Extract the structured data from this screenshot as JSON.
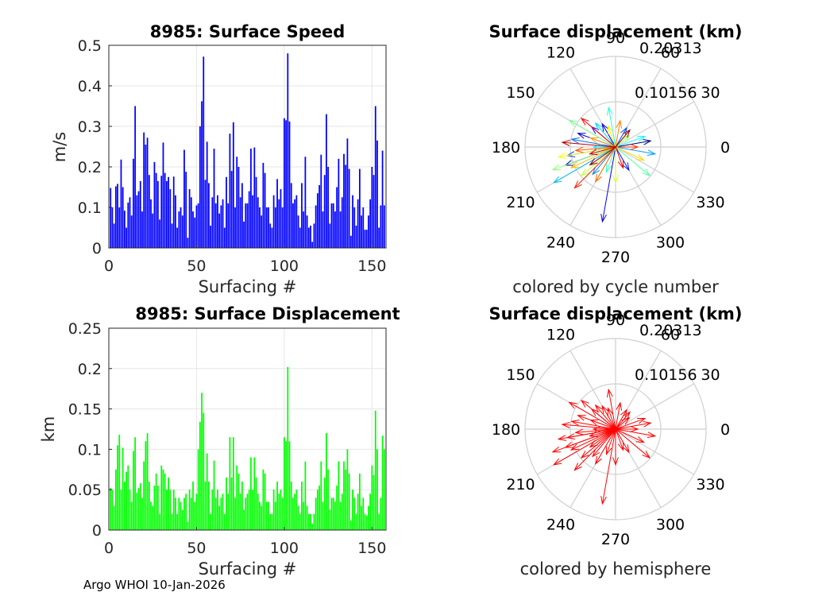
{
  "chart_data": [
    {
      "type": "bar",
      "title": "8985: Surface Speed",
      "xlabel": "Surfacing #",
      "ylabel": "m/s",
      "xlim": [
        0,
        158
      ],
      "ylim": [
        0,
        0.5
      ],
      "xticks": [
        "0",
        "50",
        "100",
        "150"
      ],
      "yticks": [
        "0",
        "0.1",
        "0.2",
        "0.3",
        "0.4",
        "0.5"
      ],
      "grid": true,
      "color": "#0000ff",
      "values": [
        0.148,
        0.1,
        0.06,
        0.152,
        0.158,
        0.1,
        0.218,
        0.15,
        0.092,
        0.05,
        0.112,
        0.125,
        0.08,
        0.22,
        0.35,
        0.13,
        0.14,
        0.165,
        0.09,
        0.285,
        0.255,
        0.272,
        0.18,
        0.12,
        0.085,
        0.212,
        0.185,
        0.165,
        0.07,
        0.178,
        0.26,
        0.185,
        0.165,
        0.175,
        0.145,
        0.06,
        0.176,
        0.13,
        0.05,
        0.09,
        0.1,
        0.08,
        0.242,
        0.188,
        0.025,
        0.145,
        0.125,
        0.09,
        0.075,
        0.105,
        0.11,
        0.3,
        0.362,
        0.472,
        0.168,
        0.262,
        0.16,
        0.055,
        0.125,
        0.245,
        0.11,
        0.13,
        0.085,
        0.105,
        0.12,
        0.05,
        0.175,
        0.11,
        0.282,
        0.19,
        0.31,
        0.1,
        0.225,
        0.2,
        0.125,
        0.16,
        0.065,
        0.11,
        0.11,
        0.14,
        0.245,
        0.13,
        0.248,
        0.175,
        0.125,
        0.1,
        0.08,
        0.21,
        0.185,
        0.1,
        0.1,
        0.06,
        0.05,
        0.13,
        0.1,
        0.17,
        0.12,
        0.145,
        0.1,
        0.32,
        0.315,
        0.48,
        0.312,
        0.16,
        0.11,
        0.12,
        0.13,
        0.08,
        0.05,
        0.16,
        0.09,
        0.225,
        0.08,
        0.05,
        0.055,
        0.015,
        0.06,
        0.105,
        0.135,
        0.155,
        0.23,
        0.09,
        0.18,
        0.33,
        0.2,
        0.06,
        0.11,
        0.11,
        0.09,
        0.15,
        0.22,
        0.09,
        0.125,
        0.232,
        0.205,
        0.27,
        0.195,
        0.03,
        0.13,
        0.1,
        0.055,
        0.12,
        0.195,
        0.08,
        0.1,
        0.045,
        0.045,
        0.08,
        0.12,
        0.2,
        0.18,
        0.35,
        0.265,
        0.05,
        0.105,
        0.24,
        0.105
      ]
    },
    {
      "type": "bar",
      "title": "8985: Surface Displacement",
      "xlabel": "Surfacing #",
      "ylabel": "km",
      "xlim": [
        0,
        158
      ],
      "ylim": [
        0,
        0.25
      ],
      "xticks": [
        "0",
        "50",
        "100",
        "150"
      ],
      "yticks": [
        "0",
        "0.05",
        "0.1",
        "0.15",
        "0.2",
        "0.25"
      ],
      "grid": true,
      "color": "#00ff00",
      "values": [
        0.052,
        0.05,
        0.03,
        0.075,
        0.105,
        0.118,
        0.05,
        0.102,
        0.06,
        0.072,
        0.08,
        0.05,
        0.035,
        0.098,
        0.115,
        0.046,
        0.052,
        0.058,
        0.04,
        0.085,
        0.11,
        0.12,
        0.06,
        0.035,
        0.03,
        0.055,
        0.07,
        0.055,
        0.02,
        0.08,
        0.075,
        0.07,
        0.05,
        0.065,
        0.05,
        0.02,
        0.05,
        0.04,
        0.02,
        0.04,
        0.035,
        0.025,
        0.04,
        0.045,
        0.01,
        0.05,
        0.04,
        0.06,
        0.035,
        0.045,
        0.1,
        0.134,
        0.17,
        0.145,
        0.06,
        0.095,
        0.06,
        0.02,
        0.05,
        0.086,
        0.04,
        0.05,
        0.03,
        0.04,
        0.045,
        0.02,
        0.065,
        0.045,
        0.115,
        0.065,
        0.115,
        0.04,
        0.08,
        0.07,
        0.045,
        0.06,
        0.025,
        0.04,
        0.045,
        0.05,
        0.09,
        0.05,
        0.09,
        0.065,
        0.045,
        0.035,
        0.03,
        0.075,
        0.07,
        0.035,
        0.035,
        0.02,
        0.02,
        0.05,
        0.035,
        0.06,
        0.045,
        0.05,
        0.04,
        0.115,
        0.11,
        0.202,
        0.11,
        0.06,
        0.04,
        0.045,
        0.05,
        0.03,
        0.02,
        0.06,
        0.035,
        0.085,
        0.03,
        0.02,
        0.02,
        0.008,
        0.02,
        0.04,
        0.05,
        0.055,
        0.085,
        0.035,
        0.065,
        0.12,
        0.075,
        0.025,
        0.04,
        0.04,
        0.035,
        0.055,
        0.085,
        0.035,
        0.045,
        0.085,
        0.075,
        0.1,
        0.07,
        0.012,
        0.05,
        0.04,
        0.02,
        0.045,
        0.07,
        0.03,
        0.04,
        0.02,
        0.018,
        0.03,
        0.045,
        0.08,
        0.068,
        0.148,
        0.1,
        0.02,
        0.04,
        0.117,
        0.1
      ]
    },
    {
      "type": "polar",
      "title": "Surface displacement (km)",
      "caption": "colored by cycle number",
      "rmax": 0.20313,
      "rticks": [
        "0.10156",
        "0.20313"
      ],
      "theta_ticks": [
        "0",
        "30",
        "60",
        "90",
        "120",
        "150",
        "180",
        "210",
        "240",
        "270",
        "300",
        "330"
      ],
      "coloring": "cycle",
      "vectors": [
        {
          "angle": 10,
          "r": 0.08
        },
        {
          "angle": 200,
          "r": 0.12
        },
        {
          "angle": 160,
          "r": 0.09
        },
        {
          "angle": 120,
          "r": 0.06
        },
        {
          "angle": 260,
          "r": 0.17
        },
        {
          "angle": 140,
          "r": 0.07
        },
        {
          "angle": 300,
          "r": 0.06
        },
        {
          "angle": 190,
          "r": 0.11
        },
        {
          "angle": 60,
          "r": 0.05
        },
        {
          "angle": 170,
          "r": 0.1
        },
        {
          "angle": 230,
          "r": 0.08
        },
        {
          "angle": 350,
          "r": 0.09
        },
        {
          "angle": 210,
          "r": 0.16
        },
        {
          "angle": 130,
          "r": 0.07
        },
        {
          "angle": 180,
          "r": 0.05
        },
        {
          "angle": 20,
          "r": 0.07
        },
        {
          "angle": 100,
          "r": 0.09
        },
        {
          "angle": 250,
          "r": 0.06
        },
        {
          "angle": 320,
          "r": 0.1
        },
        {
          "angle": 150,
          "r": 0.12
        },
        {
          "angle": 200,
          "r": 0.15
        },
        {
          "angle": 40,
          "r": 0.04
        },
        {
          "angle": 220,
          "r": 0.1
        },
        {
          "angle": 270,
          "r": 0.08
        },
        {
          "angle": 190,
          "r": 0.13
        },
        {
          "angle": 110,
          "r": 0.05
        },
        {
          "angle": 335,
          "r": 0.07
        },
        {
          "angle": 205,
          "r": 0.11
        },
        {
          "angle": 160,
          "r": 0.06
        },
        {
          "angle": 80,
          "r": 0.06
        },
        {
          "angle": 240,
          "r": 0.09
        },
        {
          "angle": 185,
          "r": 0.09
        },
        {
          "angle": 0,
          "r": 0.05
        },
        {
          "angle": 225,
          "r": 0.13
        },
        {
          "angle": 140,
          "r": 0.1
        },
        {
          "angle": 290,
          "r": 0.05
        },
        {
          "angle": 195,
          "r": 0.06
        },
        {
          "angle": 175,
          "r": 0.12
        },
        {
          "angle": 50,
          "r": 0.05
        },
        {
          "angle": 215,
          "r": 0.07
        }
      ]
    },
    {
      "type": "polar",
      "title": "Surface displacement (km)",
      "caption": "colored by hemisphere",
      "rmax": 0.20313,
      "rticks": [
        "0.10156",
        "0.20313"
      ],
      "theta_ticks": [
        "0",
        "30",
        "60",
        "90",
        "120",
        "150",
        "180",
        "210",
        "240",
        "270",
        "300",
        "330"
      ],
      "coloring": "hemisphere",
      "color": "#ff0000",
      "vectors": [
        {
          "angle": 10,
          "r": 0.08
        },
        {
          "angle": 200,
          "r": 0.12
        },
        {
          "angle": 160,
          "r": 0.09
        },
        {
          "angle": 120,
          "r": 0.06
        },
        {
          "angle": 260,
          "r": 0.17
        },
        {
          "angle": 140,
          "r": 0.07
        },
        {
          "angle": 300,
          "r": 0.06
        },
        {
          "angle": 190,
          "r": 0.11
        },
        {
          "angle": 60,
          "r": 0.05
        },
        {
          "angle": 170,
          "r": 0.1
        },
        {
          "angle": 230,
          "r": 0.08
        },
        {
          "angle": 350,
          "r": 0.09
        },
        {
          "angle": 210,
          "r": 0.16
        },
        {
          "angle": 130,
          "r": 0.07
        },
        {
          "angle": 180,
          "r": 0.05
        },
        {
          "angle": 20,
          "r": 0.07
        },
        {
          "angle": 100,
          "r": 0.09
        },
        {
          "angle": 250,
          "r": 0.06
        },
        {
          "angle": 320,
          "r": 0.1
        },
        {
          "angle": 150,
          "r": 0.12
        },
        {
          "angle": 200,
          "r": 0.15
        },
        {
          "angle": 40,
          "r": 0.04
        },
        {
          "angle": 220,
          "r": 0.1
        },
        {
          "angle": 270,
          "r": 0.08
        },
        {
          "angle": 190,
          "r": 0.13
        },
        {
          "angle": 110,
          "r": 0.05
        },
        {
          "angle": 335,
          "r": 0.07
        },
        {
          "angle": 205,
          "r": 0.11
        },
        {
          "angle": 160,
          "r": 0.06
        },
        {
          "angle": 80,
          "r": 0.06
        },
        {
          "angle": 240,
          "r": 0.09
        },
        {
          "angle": 185,
          "r": 0.09
        },
        {
          "angle": 0,
          "r": 0.05
        },
        {
          "angle": 225,
          "r": 0.13
        },
        {
          "angle": 140,
          "r": 0.1
        },
        {
          "angle": 290,
          "r": 0.05
        },
        {
          "angle": 195,
          "r": 0.06
        },
        {
          "angle": 175,
          "r": 0.12
        },
        {
          "angle": 50,
          "r": 0.05
        },
        {
          "angle": 215,
          "r": 0.07
        }
      ]
    }
  ],
  "footer": "Argo WHOI 10-Jan-2026"
}
